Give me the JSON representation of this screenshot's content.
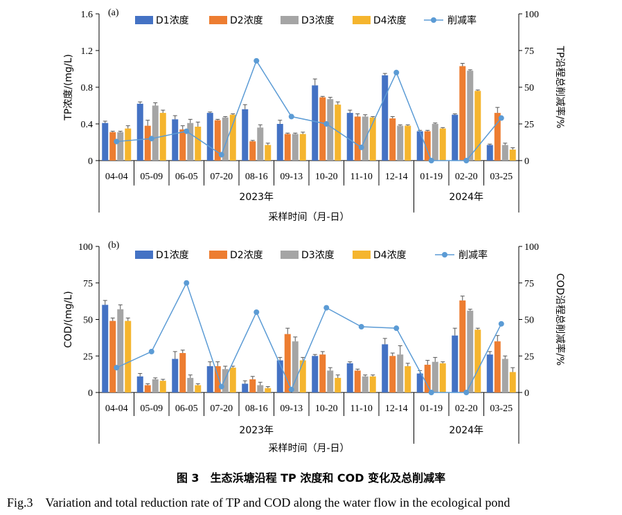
{
  "colors": {
    "D1": "#4472c4",
    "D2": "#ed7d31",
    "D3": "#a5a5a5",
    "D4": "#f5b52e",
    "rate": "#5b9bd5"
  },
  "caption": {
    "title": "图 3　生态浜塘沿程 TP 浓度和 COD 变化及总削减率",
    "subtitle": "Fig.3　Variation and total reduction rate of TP and COD along the water flow in the ecological pond"
  },
  "chart_data": [
    {
      "type": "bar",
      "panel": "(a)",
      "categories": [
        "04-04",
        "05-09",
        "06-05",
        "07-20",
        "08-16",
        "09-13",
        "10-20",
        "11-10",
        "12-14",
        "01-19",
        "02-20",
        "03-25"
      ],
      "years": [
        {
          "label": "2023年",
          "count": 9
        },
        {
          "label": "2024年",
          "count": 3
        }
      ],
      "xlabel": "采样时间（月-日）",
      "ylabel": "TP浓度/(mg/L)",
      "y2label": "TP沿程总削减率/%",
      "ylim": [
        0,
        1.6
      ],
      "yticks": [
        "0",
        "0.4",
        "0.8",
        "1.2",
        "1.6"
      ],
      "y2lim": [
        0,
        100
      ],
      "y2ticks": [
        "0",
        "25",
        "50",
        "75",
        "100"
      ],
      "series": [
        {
          "name": "D1浓度",
          "key": "D1",
          "values": [
            0.41,
            0.62,
            0.45,
            0.52,
            0.56,
            0.4,
            0.82,
            0.52,
            0.93,
            0.32,
            0.5,
            0.17
          ],
          "errors": [
            0.02,
            0.02,
            0.04,
            0.01,
            0.05,
            0.04,
            0.07,
            0.03,
            0.02,
            0.01,
            0.01,
            0.01
          ]
        },
        {
          "name": "D2浓度",
          "key": "D2",
          "values": [
            0.31,
            0.38,
            0.34,
            0.44,
            0.21,
            0.29,
            0.69,
            0.48,
            0.46,
            0.32,
            1.03,
            0.52
          ],
          "errors": [
            0.01,
            0.06,
            0.04,
            0.01,
            0.01,
            0.01,
            0.01,
            0.03,
            0.02,
            0.01,
            0.03,
            0.06
          ]
        },
        {
          "name": "D3浓度",
          "key": "D3",
          "values": [
            0.31,
            0.6,
            0.41,
            0.47,
            0.36,
            0.29,
            0.67,
            0.48,
            0.38,
            0.4,
            0.98,
            0.17
          ],
          "errors": [
            0.01,
            0.03,
            0.04,
            0.01,
            0.03,
            0.01,
            0.02,
            0.02,
            0.01,
            0.01,
            0.01,
            0.02
          ]
        },
        {
          "name": "D4浓度",
          "key": "D4",
          "values": [
            0.35,
            0.52,
            0.37,
            0.5,
            0.17,
            0.29,
            0.61,
            0.47,
            0.38,
            0.35,
            0.76,
            0.12
          ],
          "errors": [
            0.03,
            0.03,
            0.05,
            0.01,
            0.02,
            0.02,
            0.03,
            0.01,
            0.01,
            0.01,
            0.01,
            0.02
          ]
        }
      ],
      "rate": {
        "name": "削减率",
        "values": [
          13,
          15,
          20,
          4,
          68,
          30,
          25,
          9,
          60,
          0,
          0,
          29
        ]
      }
    },
    {
      "type": "bar",
      "panel": "(b)",
      "categories": [
        "04-04",
        "05-09",
        "06-05",
        "07-20",
        "08-16",
        "09-13",
        "10-20",
        "11-10",
        "12-14",
        "01-19",
        "02-20",
        "03-25"
      ],
      "years": [
        {
          "label": "2023年",
          "count": 9
        },
        {
          "label": "2024年",
          "count": 3
        }
      ],
      "xlabel": "采样时间（月-日）",
      "ylabel": "COD/(mg/L)",
      "y2label": "COD沿程总削减率/%",
      "ylim": [
        0,
        100
      ],
      "yticks": [
        "0",
        "25",
        "50",
        "75",
        "100"
      ],
      "y2lim": [
        0,
        100
      ],
      "y2ticks": [
        "0",
        "25",
        "50",
        "75",
        "100"
      ],
      "series": [
        {
          "name": "D1浓度",
          "key": "D1",
          "values": [
            60,
            11,
            23,
            18,
            6,
            22,
            25,
            20,
            33,
            13,
            39,
            26
          ],
          "errors": [
            3,
            2,
            5,
            3,
            2,
            2,
            1,
            1,
            4,
            2,
            5,
            2
          ]
        },
        {
          "name": "D2浓度",
          "key": "D2",
          "values": [
            49,
            5,
            27,
            18,
            9,
            40,
            26,
            15,
            25,
            19,
            63,
            35
          ],
          "errors": [
            2,
            1,
            2,
            3,
            2,
            4,
            2,
            1,
            2,
            3,
            3,
            4
          ]
        },
        {
          "name": "D3浓度",
          "key": "D3",
          "values": [
            57,
            9,
            10,
            16,
            5,
            35,
            15,
            11,
            26,
            21,
            56,
            23
          ],
          "errors": [
            3,
            1,
            2,
            2,
            2,
            3,
            2,
            1,
            6,
            3,
            1,
            2
          ]
        },
        {
          "name": "D4浓度",
          "key": "D4",
          "values": [
            49,
            8,
            5,
            17,
            3,
            22,
            10,
            11,
            18,
            20,
            43,
            14
          ],
          "errors": [
            2,
            1,
            1,
            1,
            1,
            2,
            2,
            1,
            2,
            1,
            1,
            3
          ]
        }
      ],
      "rate": {
        "name": "削减率",
        "values": [
          17,
          28,
          75,
          4,
          55,
          2,
          58,
          45,
          44,
          0,
          0,
          47
        ]
      }
    }
  ]
}
